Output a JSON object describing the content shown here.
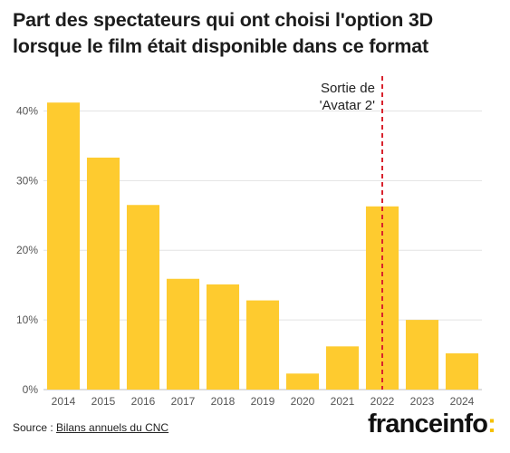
{
  "title": "Part des spectateurs qui ont choisi l'option 3D lorsque le film était disponible dans ce format",
  "source": {
    "prefix": "Source : ",
    "link_text": "Bilans annuels du CNC"
  },
  "brand": {
    "name": "franceinfo",
    "mark": ":"
  },
  "colors": {
    "bar": "#fecb2f",
    "grid": "#e3e3e3",
    "axis": "#555555",
    "annotation_line": "#d9232e",
    "logo_mark": "#f5c000"
  },
  "chart_data": {
    "type": "bar",
    "categories": [
      "2014",
      "2015",
      "2016",
      "2017",
      "2018",
      "2019",
      "2020",
      "2021",
      "2022",
      "2023",
      "2024"
    ],
    "values": [
      41.2,
      33.3,
      26.5,
      15.9,
      15.1,
      12.8,
      2.3,
      6.2,
      26.3,
      10.0,
      5.2
    ],
    "ylim": [
      0,
      45
    ],
    "yticks": [
      0,
      10,
      20,
      30,
      40
    ],
    "ytick_labels": [
      "0%",
      "10%",
      "20%",
      "30%",
      "40%"
    ],
    "xlabel": "",
    "ylabel": "",
    "grid": true,
    "annotation": {
      "category": "2022",
      "style": "dashed-vertical-line",
      "lines": [
        "Sortie de",
        "'Avatar 2'"
      ]
    }
  }
}
